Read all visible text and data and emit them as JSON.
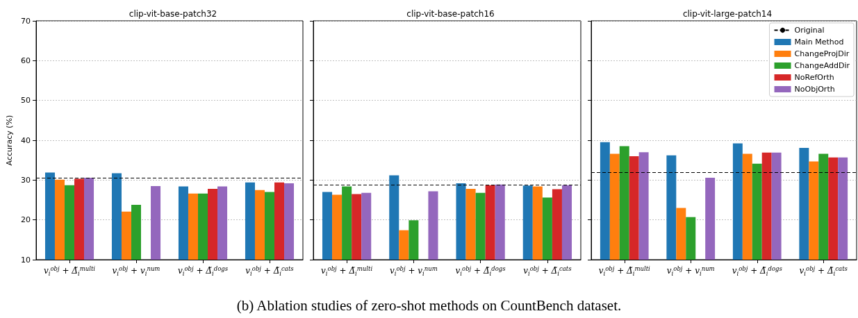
{
  "chart_data": [
    {
      "type": "bar",
      "title": "clip-vit-base-patch32",
      "ylabel": "Accuracy (%)",
      "categories": [
        "v$_{i}$$^{obj}$ + Δ̃$_{i}$$^{multi}$",
        "v$_{i}$$^{obj}$ + v$_{i}$$^{num}$",
        "v$_{i}$$^{obj}$ + Δ̃$_{i}$$^{dogs}$",
        "v$_{i}$$^{obj}$ + Δ̃$_{i}$$^{cats}$"
      ],
      "series": [
        {
          "color": "#1f77b4",
          "values": [
            31.9,
            31.7,
            28.4,
            29.4
          ]
        },
        {
          "color": "#ff7f0e",
          "values": [
            30.1,
            22.1,
            26.6,
            27.5
          ]
        },
        {
          "color": "#2ca02c",
          "values": [
            28.7,
            23.8,
            26.6,
            27.0
          ]
        },
        {
          "color": "#d62728",
          "values": [
            30.3,
            null,
            27.8,
            29.4
          ]
        },
        {
          "color": "#9467bd",
          "values": [
            30.6,
            28.5,
            28.4,
            29.2
          ]
        }
      ],
      "ylim": [
        10,
        70
      ],
      "yticks": [
        10,
        20,
        30,
        40,
        50,
        60,
        70
      ],
      "grid": "y",
      "legend": false,
      "ref_lines": [
        {
          "axis": "y",
          "value": 30.6,
          "color": "#000000",
          "line_style": "dashed"
        }
      ]
    },
    {
      "type": "bar",
      "title": "clip-vit-base-patch16",
      "categories": [
        "v$_{i}$$^{obj}$ + Δ̃$_{i}$$^{multi}$",
        "v$_{i}$$^{obj}$ + v$_{i}$$^{num}$",
        "v$_{i}$$^{obj}$ + Δ̃$_{i}$$^{dogs}$",
        "v$_{i}$$^{obj}$ + Δ̃$_{i}$$^{cats}$"
      ],
      "series": [
        {
          "color": "#1f77b4",
          "values": [
            27.0,
            31.2,
            29.2,
            28.6
          ]
        },
        {
          "color": "#ff7f0e",
          "values": [
            26.3,
            17.4,
            27.8,
            28.4
          ]
        },
        {
          "color": "#2ca02c",
          "values": [
            28.4,
            19.9,
            26.8,
            25.6
          ]
        },
        {
          "color": "#d62728",
          "values": [
            26.5,
            null,
            28.7,
            27.7
          ]
        },
        {
          "color": "#9467bd",
          "values": [
            26.8,
            27.2,
            28.9,
            28.7
          ]
        }
      ],
      "ylim": [
        10,
        70
      ],
      "yticks": [
        10,
        20,
        30,
        40,
        50,
        60,
        70
      ],
      "grid": "y",
      "legend": false,
      "tick_labels": "x",
      "ref_lines": [
        {
          "axis": "y",
          "value": 28.8,
          "color": "#000000",
          "line_style": "dashed"
        }
      ]
    },
    {
      "type": "bar",
      "title": "clip-vit-large-patch14",
      "categories": [
        "v$_{i}$$^{obj}$ + Δ̃$_{i}$$^{multi}$",
        "v$_{i}$$^{obj}$ + v$_{i}$$^{num}$",
        "v$_{i}$$^{obj}$ + Δ̃$_{i}$$^{dogs}$",
        "v$_{i}$$^{obj}$ + Δ̃$_{i}$$^{cats}$"
      ],
      "series": [
        {
          "name": "Main Method",
          "color": "#1f77b4",
          "values": [
            39.5,
            36.2,
            39.2,
            38.1
          ]
        },
        {
          "name": "ChangeProjDir",
          "color": "#ff7f0e",
          "values": [
            36.6,
            23.0,
            36.6,
            34.7
          ]
        },
        {
          "name": "ChangeAddDir",
          "color": "#2ca02c",
          "values": [
            38.5,
            20.7,
            34.1,
            36.6
          ]
        },
        {
          "name": "NoRefOrth",
          "color": "#d62728",
          "values": [
            36.0,
            null,
            36.9,
            35.7
          ]
        },
        {
          "name": "NoObjOrth",
          "color": "#9467bd",
          "values": [
            37.0,
            30.6,
            36.9,
            35.7
          ]
        }
      ],
      "ylim": [
        10,
        70
      ],
      "yticks": [
        10,
        20,
        30,
        40,
        50,
        60,
        70
      ],
      "grid": "y",
      "legend": "top right",
      "tick_labels": "x",
      "ref_lines": [
        {
          "axis": "y",
          "value": 32.0,
          "label": "Original",
          "color": "#000000",
          "line_style": "dashed"
        }
      ],
      "annotations": [
        "(b) Ablation studies of zero-shot methods on CountBench dataset."
      ]
    }
  ]
}
